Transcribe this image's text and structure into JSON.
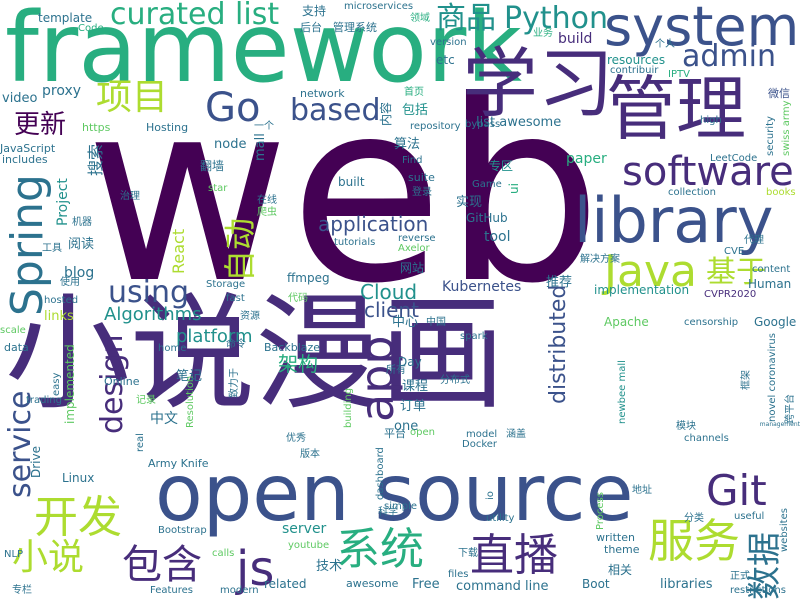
{
  "words": {
    "w001": "web",
    "w002": "小说",
    "w003": "漫画",
    "w004": "framework",
    "w005": "open source",
    "w006": "学习",
    "w007": "管理",
    "w008": "system",
    "w009": "library",
    "w010": "Java",
    "w011": "Spring",
    "w012": "app",
    "w013": "服务",
    "w014": "开发",
    "w015": "系统",
    "w016": "直播",
    "w017": "包含",
    "w018": "小说",
    "w019": "js",
    "w020": "Git",
    "w021": "software",
    "w022": "基于",
    "w023": "数据",
    "w024": "Go",
    "w025": "based",
    "w026": "项目",
    "w027": "admin",
    "w028": "curated list",
    "w029": "商品",
    "w030": "Python",
    "w031": "自动",
    "w032": "service",
    "w033": "design",
    "w034": "using",
    "w035": "更新",
    "w036": "application",
    "w037": "Cloud",
    "w038": "client",
    "w039": "distributed",
    "w040": "架构",
    "w041": "Algorithms",
    "w042": "platform",
    "w043": "React",
    "w044": "template",
    "w045": "Code",
    "w046": "microservices",
    "w047": "支持",
    "w048": "后台",
    "w049": "管理系统",
    "w050": "领域",
    "w051": "version",
    "w052": "业务",
    "w053": "个人",
    "w054": "etc",
    "w055": "build",
    "w056": "resources",
    "w057": "contribuir",
    "w058": "IPTV",
    "w059": "proxy",
    "w060": "video",
    "w061": "network",
    "w062": "内容",
    "w063": "包括",
    "w064": "首页",
    "w065": "微信",
    "w066": "list awesome",
    "w067": "repository",
    "w068": "bypass",
    "w069": "high",
    "w070": "https",
    "w071": "Hosting",
    "w072": "一个",
    "w073": "security",
    "w074": "swiss army",
    "w075": "JavaScript",
    "w076": "includes",
    "w077": "搜索",
    "w078": "node",
    "w079": "mall",
    "w080": "算法",
    "w081": "paper",
    "w082": "Find",
    "w083": "LeetCode",
    "w084": "翻墙",
    "w085": "专区",
    "w086": "built",
    "w087": "suite",
    "w088": "Game",
    "w089": "ui",
    "w090": "star",
    "w091": "在线",
    "w092": "爬虫",
    "w093": "登录",
    "w094": "collection",
    "w095": "books",
    "w096": "治理",
    "w097": "机器",
    "w098": "实现",
    "w099": "GitHub",
    "w100": "tool",
    "w101": "代理",
    "w102": "Project",
    "w103": "tutorials",
    "w104": "reverse",
    "w105": "Axelor",
    "w106": "工具",
    "w107": "阅读",
    "w108": "CVE",
    "w109": "解决方案",
    "w110": "使用",
    "w111": "blog",
    "w112": "ffmpeg",
    "w113": "网站",
    "w114": "推荐",
    "w115": "content",
    "w116": "hosted",
    "w117": "Storage",
    "w118": "fast",
    "w119": "代码",
    "w120": "Kubernetes",
    "w121": "implementation",
    "w122": "Human",
    "w123": "CVPR2020",
    "w124": "links",
    "w125": "资源",
    "w126": "中心",
    "w127": "中国",
    "w128": "Apache",
    "w129": "censorship",
    "w130": "Google",
    "w131": "scale",
    "w132": "data",
    "w133": "home",
    "w134": "命令",
    "w135": "Backblaze",
    "w136": "spark",
    "w137": "Day",
    "w138": "所有",
    "w139": "easy",
    "w140": "笔记",
    "w141": "Online",
    "w142": "致力于",
    "w143": "课程",
    "w144": "分布式",
    "w145": "newbee mall",
    "w146": "novel coronavirus",
    "w147": "跨平台",
    "w148": "implemented",
    "w149": "trading",
    "w150": "记录",
    "w151": "Resolution",
    "w152": "building",
    "w153": "订单",
    "w154": "management",
    "w155": "中文",
    "w156": "real",
    "w157": "优秀",
    "w158": "one",
    "w159": "平台",
    "w160": "open",
    "w161": "model",
    "w162": "涵盖",
    "w163": "模块",
    "w164": "Army Knife",
    "w165": "channels",
    "w166": "Drive",
    "w167": "版本",
    "w168": "dashboard",
    "w169": "Docker",
    "w170": "Linux",
    "w171": "io",
    "w172": "地址",
    "w173": "websites",
    "w174": "Bootstrap",
    "w175": "科学",
    "w176": "utility",
    "w177": "useful",
    "w178": "分类",
    "w179": "server",
    "w180": "Process",
    "w181": "written",
    "w182": "theme",
    "w183": "NLP",
    "w184": "calls",
    "w185": "youtube",
    "w186": "related",
    "w187": "技术",
    "w188": "相关",
    "w189": "下载",
    "w190": "awesome",
    "w191": "Free",
    "w192": "files",
    "w193": "command line",
    "w194": "Boot",
    "w195": "libraries",
    "w196": "正式",
    "w197": "restrictions",
    "w198": "专栏",
    "w199": "Features",
    "w200": "modern",
    "w201": "simple",
    "w202": "框架"
  }
}
